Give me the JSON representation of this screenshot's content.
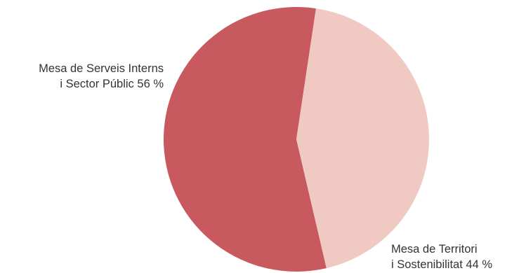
{
  "chart_data": {
    "type": "pie",
    "slices": [
      {
        "label_line1": "Mesa de Serveis Interns",
        "label_line2": "i Sector Públic 56 %",
        "value": 56,
        "color": "#c85a5f"
      },
      {
        "label_line1": "Mesa de Territori",
        "label_line2": "i Sostenibilitat 44 %",
        "value": 44,
        "color": "#efc9c2"
      }
    ]
  }
}
